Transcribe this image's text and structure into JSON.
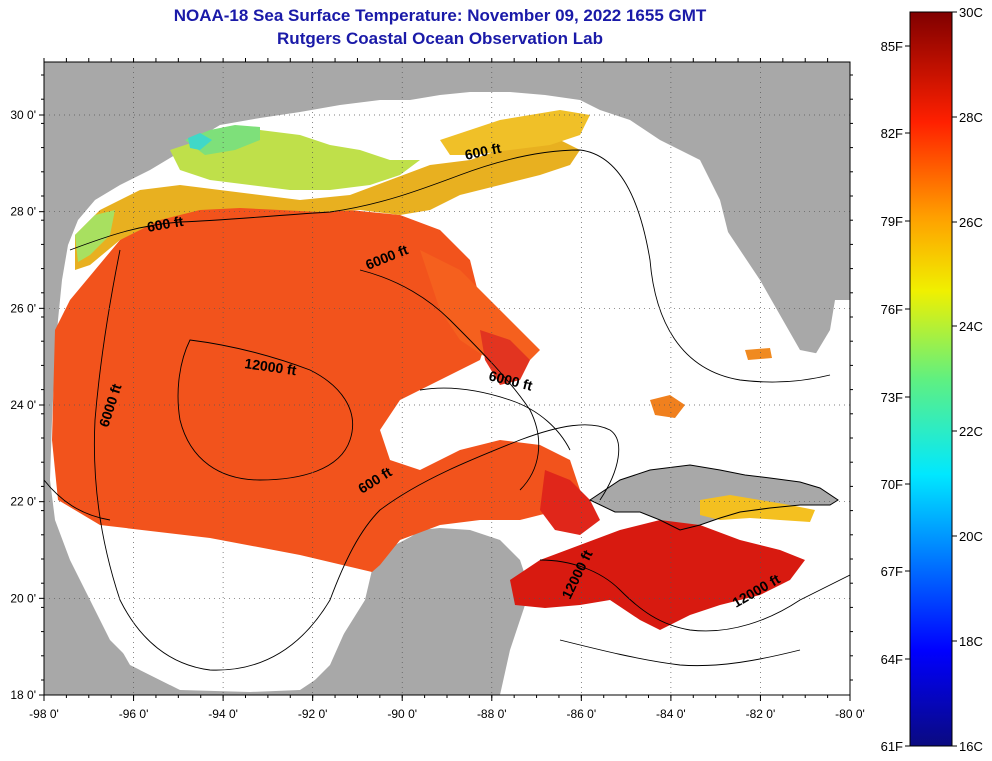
{
  "title": {
    "line1": "NOAA-18 Sea Surface Temperature:  November 09, 2022 1655 GMT",
    "line2": "Rutgers Coastal Ocean Observation Lab"
  },
  "axes": {
    "lat_ticks": [
      "30 0'",
      "28 0'",
      "26 0'",
      "24 0'",
      "22 0'",
      "20 0'",
      "18 0'"
    ],
    "lon_ticks": [
      "-98 0'",
      "-96 0'",
      "-94 0'",
      "-92 0'",
      "-90 0'",
      "-88 0'",
      "-86 0'",
      "-84 0'",
      "-82 0'",
      "-80 0'"
    ]
  },
  "contour_labels": [
    "600 ft",
    "600 ft",
    "6000 ft",
    "12000 ft",
    "6000 ft",
    "6000 ft",
    "600 ft",
    "12000 ft",
    "12000 ft"
  ],
  "colorbar": {
    "fahrenheit_labels": [
      "85F",
      "82F",
      "79F",
      "76F",
      "73F",
      "70F",
      "67F",
      "64F",
      "61F"
    ],
    "celsius_labels": [
      "30C",
      "28C",
      "26C",
      "24C",
      "22C",
      "20C",
      "18C",
      "16C"
    ]
  },
  "colors": {
    "land": "#a8a8a8",
    "no_data": "#ffffff",
    "title": "#1a1aa8"
  }
}
